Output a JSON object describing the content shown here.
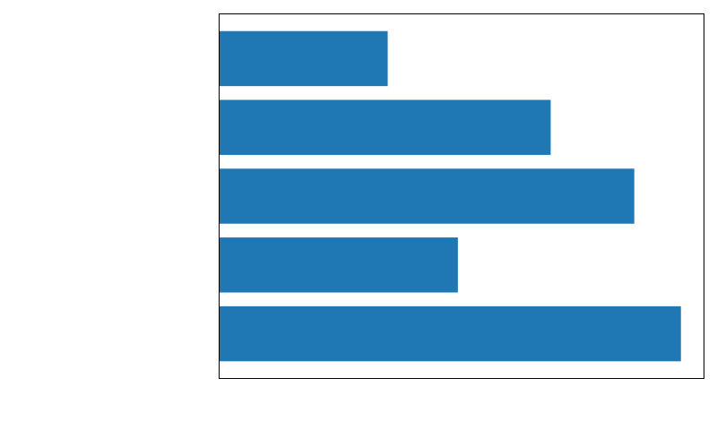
{
  "chart_data": {
    "type": "bar",
    "orientation": "horizontal",
    "categories": [
      "",
      "",
      "",
      "",
      ""
    ],
    "values": [
      36.5,
      71.8,
      89.9,
      51.7,
      100
    ],
    "value_order": "top-to-bottom",
    "xlim": [
      0,
      105
    ],
    "title": "",
    "xlabel": "",
    "ylabel": "",
    "tick_labels_shown": false,
    "grid": false,
    "legend": "none",
    "bar_color": "#1f77b4",
    "frame_color": "#000000"
  }
}
